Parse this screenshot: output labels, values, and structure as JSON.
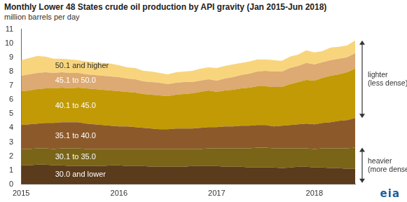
{
  "chart_data": {
    "type": "area",
    "title": "Monthly Lower 48 States crude oil production by API gravity (Jan 2015-Jun 2018)",
    "subtitle": "million barrels per day",
    "categories": [
      "2015",
      null,
      null,
      null,
      null,
      null,
      null,
      null,
      null,
      null,
      null,
      null,
      "2016",
      null,
      null,
      null,
      null,
      null,
      null,
      null,
      null,
      null,
      null,
      null,
      "2017",
      null,
      null,
      null,
      null,
      null,
      null,
      null,
      null,
      null,
      null,
      null,
      "2018",
      null,
      null,
      null,
      null,
      null
    ],
    "series": [
      {
        "name": "30.0 and lower",
        "color": "#5a3b1c",
        "values": [
          1.35,
          1.35,
          1.4,
          1.4,
          1.35,
          1.35,
          1.3,
          1.3,
          1.3,
          1.3,
          1.3,
          1.35,
          1.35,
          1.3,
          1.3,
          1.3,
          1.25,
          1.25,
          1.25,
          1.25,
          1.25,
          1.3,
          1.3,
          1.3,
          1.3,
          1.25,
          1.25,
          1.25,
          1.2,
          1.2,
          1.2,
          1.2,
          1.15,
          1.2,
          1.25,
          1.25,
          1.2,
          1.2,
          1.15,
          1.15,
          1.1,
          1.1
        ]
      },
      {
        "name": "30.1 to 35.0",
        "color": "#7a6417",
        "values": [
          1.15,
          1.15,
          1.15,
          1.15,
          1.15,
          1.2,
          1.25,
          1.25,
          1.2,
          1.2,
          1.2,
          1.15,
          1.15,
          1.2,
          1.2,
          1.2,
          1.25,
          1.25,
          1.25,
          1.25,
          1.25,
          1.2,
          1.2,
          1.25,
          1.25,
          1.3,
          1.3,
          1.3,
          1.35,
          1.4,
          1.4,
          1.35,
          1.4,
          1.35,
          1.3,
          1.3,
          1.3,
          1.35,
          1.4,
          1.4,
          1.45,
          1.5
        ]
      },
      {
        "name": "35.1 to 40.0",
        "color": "#8c5a2a",
        "values": [
          1.7,
          1.75,
          1.75,
          1.8,
          1.85,
          1.85,
          1.85,
          1.85,
          1.8,
          1.75,
          1.7,
          1.65,
          1.6,
          1.6,
          1.55,
          1.5,
          1.45,
          1.4,
          1.4,
          1.45,
          1.45,
          1.45,
          1.5,
          1.5,
          1.5,
          1.55,
          1.55,
          1.6,
          1.6,
          1.6,
          1.6,
          1.55,
          1.6,
          1.65,
          1.7,
          1.75,
          1.75,
          1.8,
          1.85,
          1.95,
          2.0,
          2.1
        ]
      },
      {
        "name": "40.1 to 45.0",
        "color": "#c29a05",
        "values": [
          2.4,
          2.4,
          2.45,
          2.45,
          2.45,
          2.45,
          2.4,
          2.45,
          2.5,
          2.5,
          2.5,
          2.5,
          2.5,
          2.45,
          2.45,
          2.4,
          2.4,
          2.4,
          2.35,
          2.4,
          2.45,
          2.5,
          2.55,
          2.6,
          2.5,
          2.55,
          2.6,
          2.65,
          2.7,
          2.75,
          2.75,
          2.8,
          2.75,
          2.9,
          3.0,
          3.1,
          3.1,
          3.2,
          3.3,
          3.3,
          3.4,
          3.5
        ]
      },
      {
        "name": "45.1 to 50.0",
        "color": "#dcaa72",
        "values": [
          1.1,
          1.15,
          1.15,
          1.15,
          1.1,
          1.1,
          1.1,
          1.05,
          1.0,
          1.0,
          1.0,
          1.0,
          1.0,
          0.95,
          0.95,
          0.9,
          0.9,
          0.9,
          0.85,
          0.85,
          0.85,
          0.8,
          0.8,
          0.8,
          0.8,
          0.85,
          0.9,
          0.95,
          1.0,
          1.05,
          1.1,
          1.1,
          1.1,
          1.15,
          1.15,
          1.2,
          1.15,
          1.1,
          1.1,
          1.1,
          1.05,
          1.1
        ]
      },
      {
        "name": "50.1 and higher",
        "color": "#f8d57c",
        "values": [
          1.1,
          1.15,
          1.2,
          1.1,
          1.0,
          0.95,
          0.95,
          0.9,
          0.9,
          0.9,
          0.9,
          0.9,
          0.85,
          0.8,
          0.8,
          0.75,
          0.75,
          0.7,
          0.7,
          0.75,
          0.75,
          0.8,
          0.85,
          0.85,
          0.9,
          0.9,
          0.9,
          0.85,
          0.85,
          0.85,
          0.8,
          0.8,
          0.75,
          0.8,
          0.8,
          0.9,
          0.85,
          0.8,
          0.9,
          0.85,
          0.85,
          0.9
        ]
      }
    ],
    "ylim": [
      0,
      11
    ],
    "yticks": [
      0,
      1,
      2,
      3,
      4,
      5,
      6,
      7,
      8,
      9,
      10,
      11
    ],
    "stacked": true,
    "grid": false,
    "annotations": [
      [
        "lighter",
        "(less dense)"
      ],
      [
        "heavier",
        "(more dense)"
      ]
    ],
    "logo": "eia"
  }
}
